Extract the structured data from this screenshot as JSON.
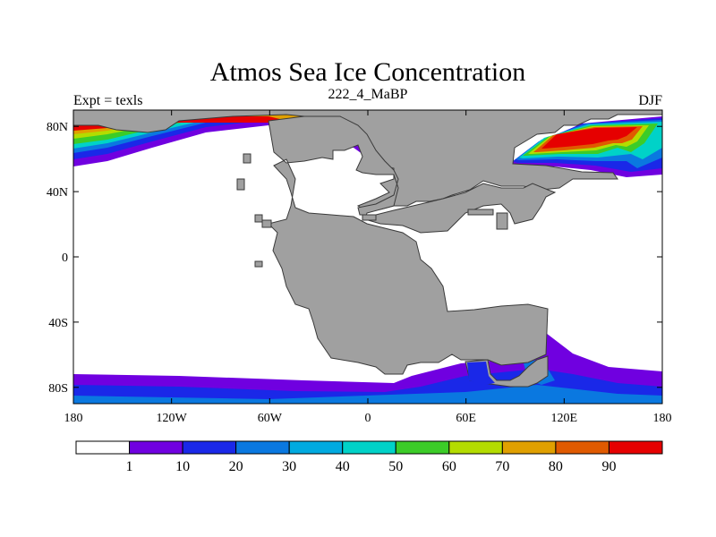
{
  "title": "Atmos Sea Ice Concentration",
  "left_label": "Expt = texls",
  "center_label": "222_4_MaBP",
  "right_label": "DJF",
  "map": {
    "lon_range": [
      -180,
      180
    ],
    "lat_range": [
      -90,
      90
    ],
    "x_ticks": [
      {
        "lon": -180,
        "label": "180"
      },
      {
        "lon": -120,
        "label": "120W"
      },
      {
        "lon": -60,
        "label": "60W"
      },
      {
        "lon": 0,
        "label": "0"
      },
      {
        "lon": 60,
        "label": "60E"
      },
      {
        "lon": 120,
        "label": "120E"
      },
      {
        "lon": 180,
        "label": "180"
      }
    ],
    "y_ticks": [
      {
        "lat": 80,
        "label": "80N"
      },
      {
        "lat": 40,
        "label": "40N"
      },
      {
        "lat": 0,
        "label": "0"
      },
      {
        "lat": -40,
        "label": "40S"
      },
      {
        "lat": -80,
        "label": "80S"
      }
    ],
    "land_color": "#a0a0a0",
    "ocean_color": "#ffffff"
  },
  "colorbar": {
    "colors": [
      "#ffffff",
      "#7000e0",
      "#1a28e8",
      "#0a78e0",
      "#00aae0",
      "#00d2c8",
      "#3ccc28",
      "#b4dc00",
      "#e0a000",
      "#e05a00",
      "#e60000"
    ],
    "labels": [
      "1",
      "10",
      "20",
      "30",
      "40",
      "50",
      "60",
      "70",
      "80",
      "90"
    ]
  },
  "chart_data": {
    "type": "heatmap",
    "title": "Atmos Sea Ice Concentration",
    "variable": "Sea Ice Concentration",
    "levels": [
      1,
      10,
      20,
      30,
      40,
      50,
      60,
      70,
      80,
      90
    ],
    "x_range": [
      -180,
      180
    ],
    "y_range": [
      -90,
      90
    ],
    "features": [
      {
        "region": "Arctic, 180W-20W",
        "lat_range": [
          50,
          85
        ],
        "max_value": 95
      },
      {
        "region": "Arctic, 90E-180E",
        "lat_range": [
          50,
          80
        ],
        "max_value": 95
      },
      {
        "region": "Southern Ocean, 180W-180E",
        "lat_range": [
          -90,
          -70
        ],
        "max_value": 20
      },
      {
        "region": "Antarctic margin, 60E-100E",
        "lat_range": [
          -85,
          -65
        ],
        "max_value": 30
      }
    ]
  }
}
